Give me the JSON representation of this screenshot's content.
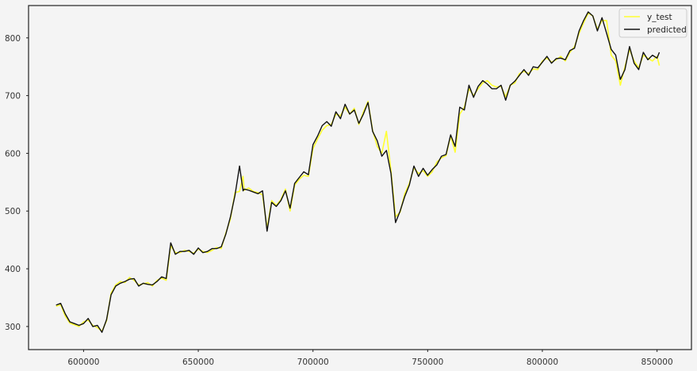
{
  "chart_data": {
    "type": "line",
    "title": "",
    "xlabel": "",
    "ylabel": "",
    "xlim": [
      576000,
      865000
    ],
    "ylim": [
      260,
      856
    ],
    "xticks": [
      600000,
      650000,
      700000,
      750000,
      800000,
      850000
    ],
    "xtick_labels": [
      "600000",
      "650000",
      "700000",
      "750000",
      "800000",
      "850000"
    ],
    "yticks": [
      300,
      400,
      500,
      600,
      700,
      800
    ],
    "ytick_labels": [
      "300",
      "400",
      "500",
      "600",
      "700",
      "800"
    ],
    "grid": false,
    "legend_position": "top-right",
    "x": [
      588000,
      590000,
      592000,
      594000,
      596000,
      598000,
      600000,
      602000,
      604000,
      606000,
      608000,
      610000,
      612000,
      614000,
      616000,
      618000,
      620000,
      622000,
      624000,
      626000,
      628000,
      630000,
      632000,
      634000,
      636000,
      638000,
      640000,
      642000,
      644000,
      646000,
      648000,
      650000,
      652000,
      654000,
      656000,
      658000,
      660000,
      662000,
      664000,
      666000,
      668000,
      669500,
      670000,
      672000,
      674000,
      676000,
      678000,
      680000,
      682000,
      684000,
      686000,
      688000,
      690000,
      692000,
      694000,
      696000,
      698000,
      700000,
      702000,
      704000,
      706000,
      708000,
      710000,
      712000,
      714000,
      716000,
      718000,
      720000,
      722000,
      724000,
      726000,
      728000,
      730000,
      732000,
      734000,
      736000,
      738000,
      740000,
      742000,
      744000,
      746000,
      748000,
      750000,
      752000,
      754000,
      756000,
      758000,
      760000,
      762000,
      764000,
      766000,
      768000,
      770000,
      772000,
      774000,
      776000,
      778000,
      780000,
      782000,
      784000,
      786000,
      788000,
      790000,
      792000,
      794000,
      796000,
      798000,
      800000,
      802000,
      804000,
      806000,
      808000,
      810000,
      812000,
      814000,
      816000,
      818000,
      820000,
      822000,
      824000,
      826000,
      828000,
      830000,
      832000,
      834000,
      836000,
      838000,
      840000,
      842000,
      844000,
      846000,
      848000,
      850000,
      851000
    ],
    "series": [
      {
        "name": "y_test",
        "color": "#ffff33",
        "values": [
          335,
          338,
          318,
          306,
          303,
          300,
          308,
          311,
          302,
          298,
          292,
          310,
          358,
          372,
          378,
          376,
          385,
          380,
          372,
          374,
          376,
          370,
          380,
          384,
          380,
          440,
          428,
          428,
          432,
          430,
          427,
          434,
          430,
          428,
          432,
          437,
          435,
          462,
          486,
          532,
          534,
          560,
          536,
          540,
          534,
          532,
          528,
          470,
          518,
          510,
          520,
          538,
          500,
          545,
          555,
          562,
          560,
          608,
          625,
          640,
          648,
          650,
          668,
          665,
          680,
          668,
          678,
          650,
          672,
          690,
          640,
          612,
          600,
          638,
          570,
          490,
          498,
          530,
          548,
          575,
          565,
          570,
          560,
          568,
          585,
          592,
          596,
          630,
          602,
          668,
          680,
          712,
          700,
          712,
          722,
          726,
          718,
          715,
          716,
          698,
          718,
          722,
          738,
          742,
          738,
          746,
          745,
          760,
          765,
          758,
          762,
          768,
          760,
          775,
          785,
          808,
          826,
          843,
          838,
          815,
          830,
          830,
          770,
          760,
          718,
          750,
          780,
          760,
          748,
          770,
          765,
          760,
          768,
          752
        ]
      },
      {
        "name": "predicted",
        "color": "#111111",
        "values": [
          337,
          340,
          322,
          308,
          305,
          302,
          305,
          314,
          300,
          302,
          290,
          312,
          355,
          370,
          375,
          378,
          382,
          383,
          370,
          375,
          373,
          372,
          378,
          386,
          383,
          445,
          425,
          430,
          430,
          432,
          425,
          436,
          428,
          430,
          435,
          435,
          438,
          460,
          490,
          527,
          578,
          535,
          538,
          536,
          533,
          530,
          535,
          465,
          515,
          508,
          518,
          535,
          505,
          548,
          558,
          568,
          563,
          615,
          630,
          648,
          655,
          647,
          672,
          660,
          685,
          668,
          675,
          652,
          668,
          688,
          638,
          622,
          595,
          605,
          565,
          480,
          500,
          525,
          545,
          578,
          560,
          574,
          562,
          572,
          580,
          595,
          598,
          632,
          612,
          680,
          675,
          718,
          697,
          716,
          726,
          720,
          712,
          712,
          718,
          692,
          718,
          725,
          735,
          745,
          735,
          750,
          748,
          758,
          768,
          756,
          764,
          765,
          762,
          778,
          782,
          812,
          830,
          845,
          838,
          812,
          835,
          808,
          780,
          770,
          728,
          745,
          785,
          756,
          745,
          775,
          762,
          770,
          765,
          775
        ]
      }
    ]
  }
}
